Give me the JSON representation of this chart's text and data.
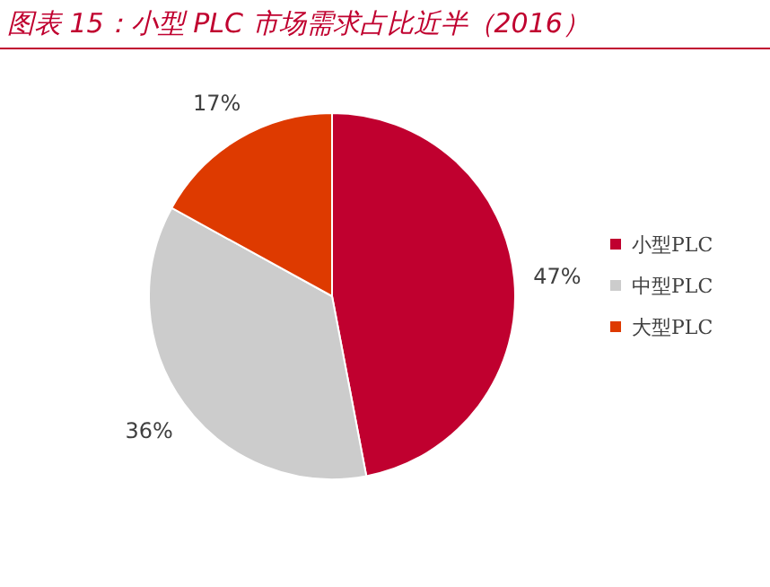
{
  "chart_data": {
    "type": "pie",
    "title": "图表 15：小型 PLC 市场需求占比近半（2016）",
    "categories": [
      "小型PLC",
      "中型PLC",
      "大型PLC"
    ],
    "values": [
      47,
      36,
      17
    ],
    "value_labels": [
      "47%",
      "36%",
      "17%"
    ],
    "colors": [
      "#c0002f",
      "#cccccc",
      "#de3a00"
    ],
    "legend": "right"
  }
}
